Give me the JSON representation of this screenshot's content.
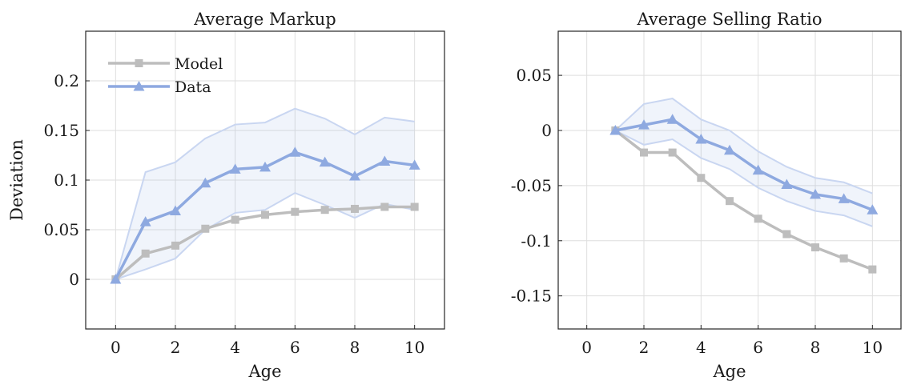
{
  "chart_data": [
    {
      "type": "line",
      "title": "Average Markup",
      "xlabel": "Age",
      "ylabel": "Deviation",
      "xlim": [
        -1,
        11
      ],
      "ylim": [
        -0.05,
        0.25
      ],
      "xticks": [
        0,
        2,
        4,
        6,
        8,
        10
      ],
      "yticks": [
        0,
        0.05,
        0.1,
        0.15,
        0.2
      ],
      "xtick_labels": [
        "0",
        "2",
        "4",
        "6",
        "8",
        "10"
      ],
      "ytick_labels": [
        "0",
        "0.05",
        "0.1",
        "0.15",
        "0.2"
      ],
      "grid": true,
      "legend": "top-left",
      "series": [
        {
          "name": "Model",
          "color": "#bdbdbd",
          "marker": "square",
          "x": [
            0,
            1,
            2,
            3,
            4,
            5,
            6,
            7,
            8,
            9,
            10
          ],
          "y": [
            0,
            0.026,
            0.034,
            0.051,
            0.06,
            0.065,
            0.068,
            0.07,
            0.071,
            0.073,
            0.073
          ]
        },
        {
          "name": "Data",
          "color": "#8ea9e0",
          "marker": "triangle",
          "x": [
            0,
            1,
            2,
            3,
            4,
            5,
            6,
            7,
            8,
            9,
            10
          ],
          "y": [
            0,
            0.058,
            0.069,
            0.097,
            0.111,
            0.113,
            0.128,
            0.118,
            0.104,
            0.119,
            0.115
          ],
          "band_lower": [
            0,
            0.01,
            0.021,
            0.05,
            0.067,
            0.07,
            0.087,
            0.075,
            0.062,
            0.076,
            0.07
          ],
          "band_upper": [
            0,
            0.108,
            0.118,
            0.142,
            0.156,
            0.158,
            0.172,
            0.162,
            0.146,
            0.163,
            0.159
          ]
        }
      ]
    },
    {
      "type": "line",
      "title": "Average Selling Ratio",
      "xlabel": "Age",
      "ylabel": "",
      "xlim": [
        -1,
        11
      ],
      "ylim": [
        -0.18,
        0.09
      ],
      "xticks": [
        0,
        2,
        4,
        6,
        8,
        10
      ],
      "yticks": [
        0.05,
        0,
        -0.05,
        -0.1,
        -0.15
      ],
      "xtick_labels": [
        "0",
        "2",
        "4",
        "6",
        "8",
        "10"
      ],
      "ytick_labels": [
        "0.05",
        "0",
        "-0.05",
        "-0.1",
        "-0.15"
      ],
      "grid": true,
      "legend": "none",
      "series": [
        {
          "name": "Model",
          "color": "#bdbdbd",
          "marker": "square",
          "x": [
            1,
            2,
            3,
            4,
            5,
            6,
            7,
            8,
            9,
            10
          ],
          "y": [
            0,
            -0.02,
            -0.02,
            -0.043,
            -0.064,
            -0.08,
            -0.094,
            -0.106,
            -0.116,
            -0.126
          ]
        },
        {
          "name": "Data",
          "color": "#8ea9e0",
          "marker": "triangle",
          "x": [
            1,
            2,
            3,
            4,
            5,
            6,
            7,
            8,
            9,
            10
          ],
          "y": [
            0,
            0.005,
            0.01,
            -0.008,
            -0.018,
            -0.036,
            -0.049,
            -0.058,
            -0.062,
            -0.072
          ],
          "band_lower": [
            0,
            -0.013,
            -0.008,
            -0.025,
            -0.035,
            -0.052,
            -0.064,
            -0.073,
            -0.077,
            -0.087
          ],
          "band_upper": [
            0,
            0.024,
            0.029,
            0.01,
            0,
            -0.019,
            -0.033,
            -0.043,
            -0.047,
            -0.057
          ]
        }
      ]
    }
  ]
}
